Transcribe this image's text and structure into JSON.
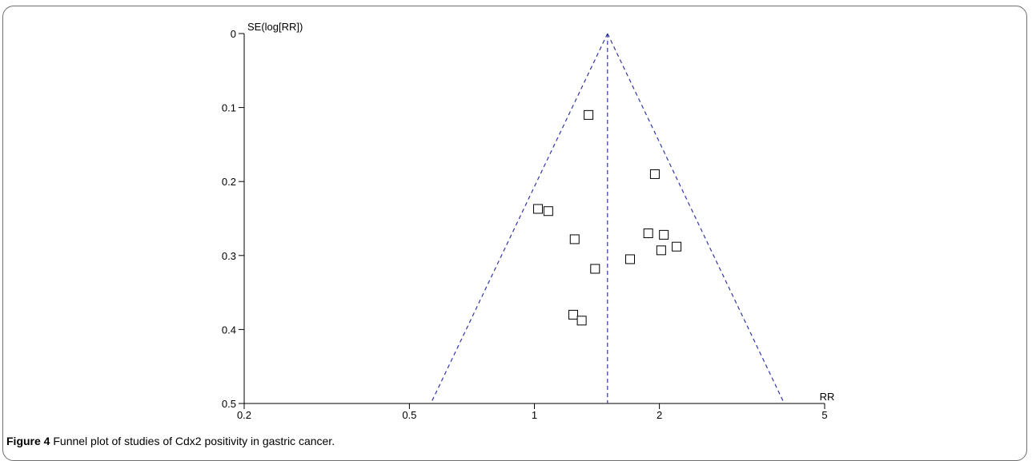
{
  "chart_data": {
    "type": "scatter",
    "title": "",
    "xlabel": "RR",
    "ylabel": "SE(log[RR])",
    "x_scale": "log",
    "xlim": [
      0.2,
      5
    ],
    "ylim": [
      0,
      0.5
    ],
    "y_inverted": true,
    "x_ticks": [
      {
        "value": 0.2,
        "label": "0.2"
      },
      {
        "value": 0.5,
        "label": "0.5"
      },
      {
        "value": 1,
        "label": "1"
      },
      {
        "value": 2,
        "label": "2"
      },
      {
        "value": 5,
        "label": "5"
      }
    ],
    "y_ticks": [
      {
        "value": 0,
        "label": "0"
      },
      {
        "value": 0.1,
        "label": "0.1"
      },
      {
        "value": 0.2,
        "label": "0.2"
      },
      {
        "value": 0.3,
        "label": "0.3"
      },
      {
        "value": 0.4,
        "label": "0.4"
      },
      {
        "value": 0.5,
        "label": "0.5"
      }
    ],
    "pooled_rr": 1.5,
    "funnel_color": "#3333aa",
    "marker_color": "#000000",
    "points": [
      {
        "x": 1.35,
        "y": 0.11
      },
      {
        "x": 1.95,
        "y": 0.19
      },
      {
        "x": 1.02,
        "y": 0.237
      },
      {
        "x": 1.08,
        "y": 0.24
      },
      {
        "x": 1.25,
        "y": 0.278
      },
      {
        "x": 1.4,
        "y": 0.318
      },
      {
        "x": 1.24,
        "y": 0.38
      },
      {
        "x": 1.3,
        "y": 0.388
      },
      {
        "x": 1.7,
        "y": 0.305
      },
      {
        "x": 1.88,
        "y": 0.27
      },
      {
        "x": 2.05,
        "y": 0.272
      },
      {
        "x": 2.02,
        "y": 0.293
      },
      {
        "x": 2.2,
        "y": 0.288
      }
    ]
  },
  "caption": {
    "label": "Figure 4",
    "text": " Funnel plot of studies of Cdx2 positivity in gastric cancer."
  }
}
